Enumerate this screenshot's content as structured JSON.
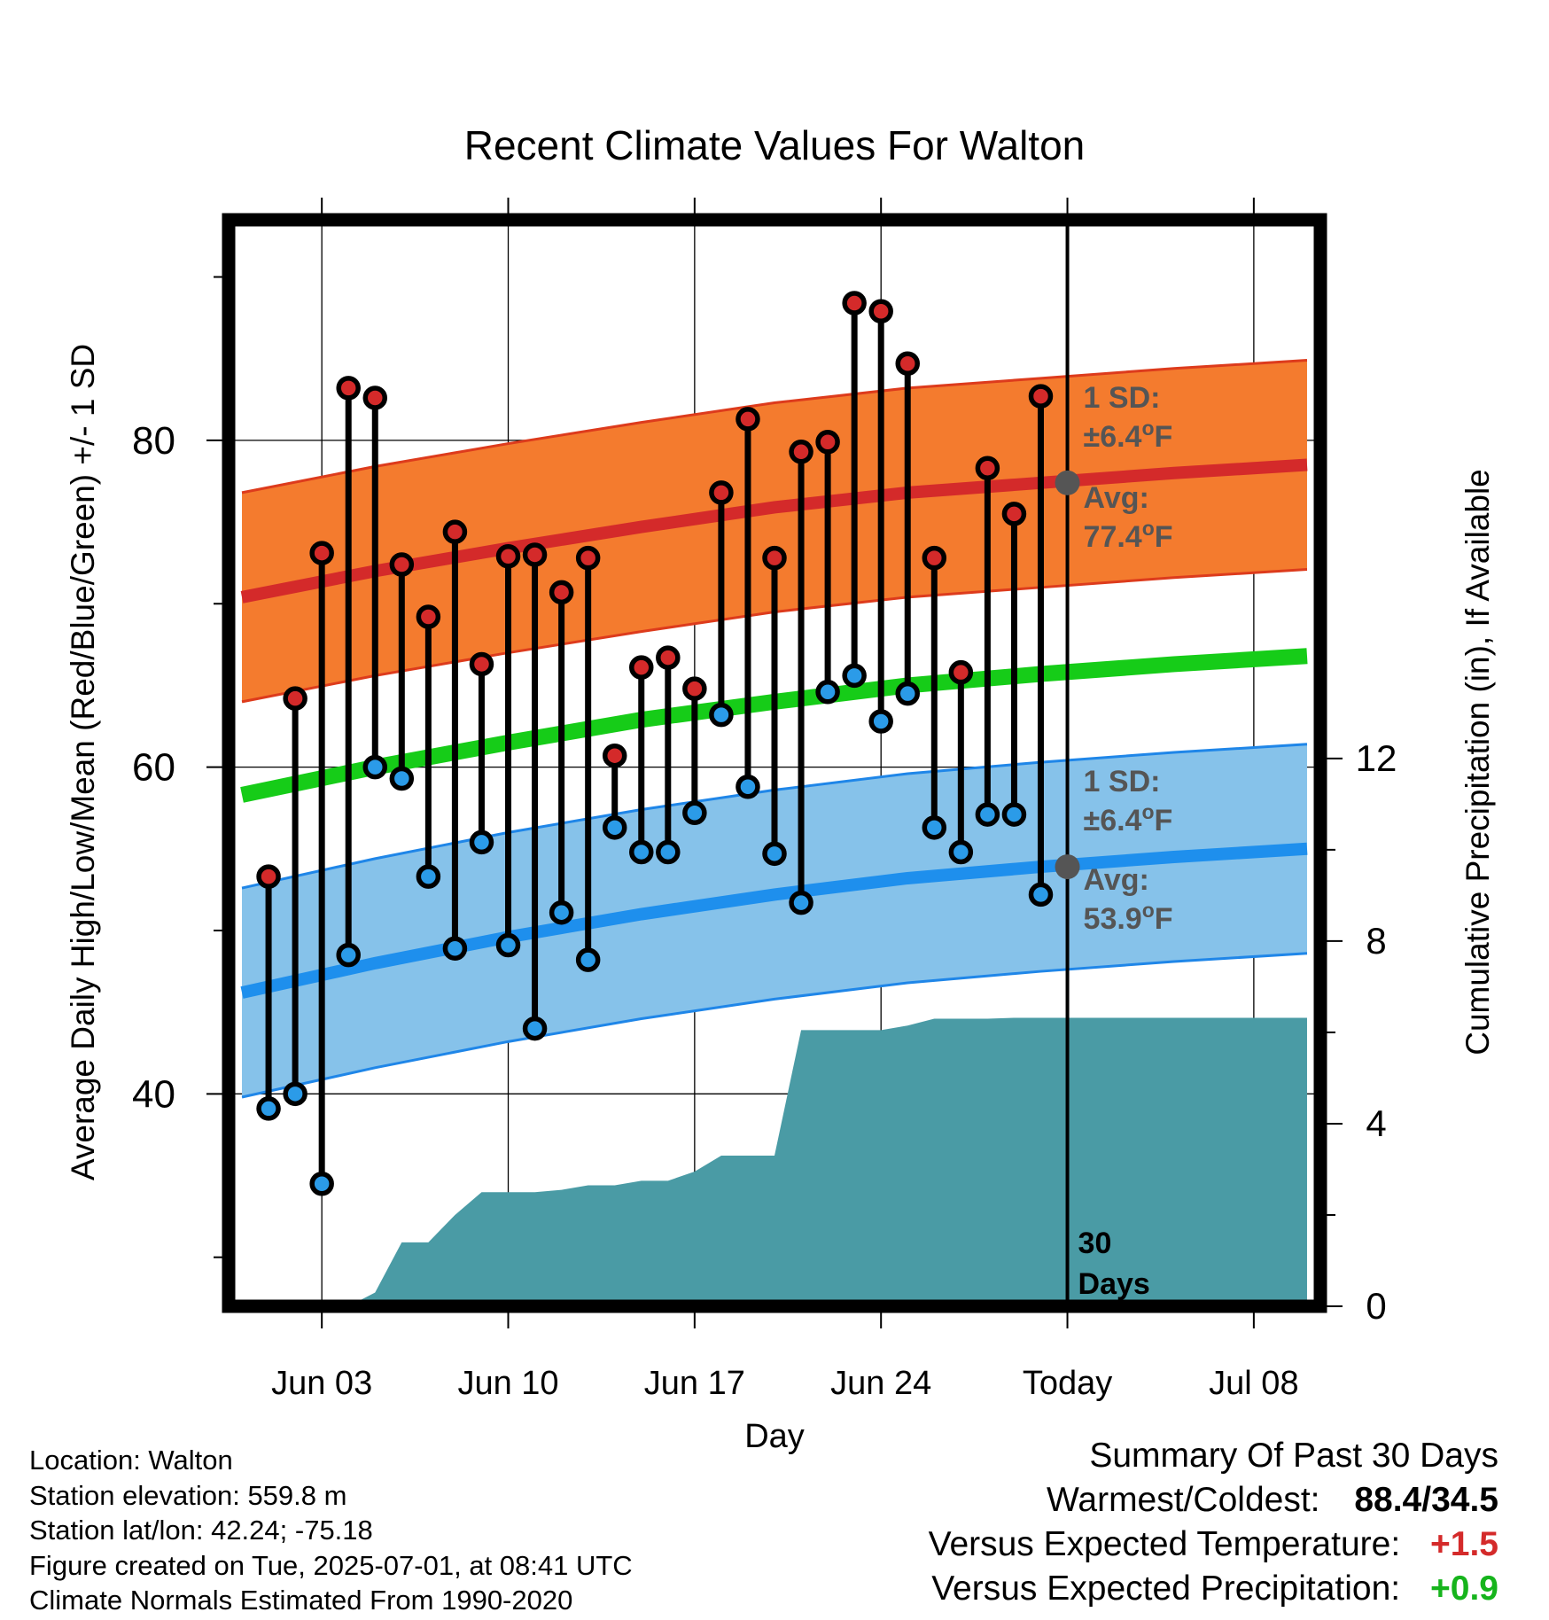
{
  "chart_data": {
    "type": "line",
    "title": "Recent Climate Values For Walton",
    "xlabel": "Day",
    "ylabel_left": "Average Daily High/Low/Mean (Red/Blue/Green) +/- 1 SD",
    "ylabel_right": "Cumulative Precipitation (in), If Available",
    "x_day_range": [
      -0.5,
      40.5
    ],
    "x_tick_labels": [
      {
        "label": "Jun 03",
        "day": 3
      },
      {
        "label": "Jun 10",
        "day": 10
      },
      {
        "label": "Jun 17",
        "day": 17
      },
      {
        "label": "Jun 24",
        "day": 24
      },
      {
        "label": "Today",
        "day": 31
      },
      {
        "label": "Jul 08",
        "day": 38
      }
    ],
    "ylim_left": [
      27,
      93.5
    ],
    "yticks_left": [
      40,
      60,
      80
    ],
    "ylim_right": [
      0,
      23.8
    ],
    "yticks_right": [
      0,
      4,
      8,
      12
    ],
    "days": [
      1,
      2,
      3,
      4,
      5,
      6,
      7,
      8,
      9,
      10,
      11,
      12,
      13,
      14,
      15,
      16,
      17,
      18,
      19,
      20,
      21,
      22,
      23,
      24,
      25,
      26,
      27,
      28,
      29,
      30
    ],
    "daily_high": [
      53.3,
      64.2,
      73.1,
      83.2,
      82.6,
      72.4,
      69.2,
      74.4,
      66.3,
      72.9,
      73.0,
      70.7,
      72.8,
      60.7,
      66.1,
      66.7,
      64.8,
      76.8,
      81.3,
      72.8,
      79.3,
      79.9,
      88.4,
      87.9,
      84.7,
      72.8,
      65.8,
      78.3,
      75.5,
      82.7
    ],
    "daily_low": [
      39.1,
      40.0,
      34.5,
      48.5,
      60.0,
      59.3,
      53.3,
      48.9,
      55.4,
      49.1,
      44.0,
      51.1,
      48.2,
      56.3,
      54.8,
      54.8,
      57.2,
      63.2,
      58.8,
      54.7,
      51.7,
      64.6,
      65.6,
      62.8,
      64.5,
      56.3,
      54.8,
      57.1,
      57.1,
      52.2
    ],
    "normal_high": {
      "days": [
        0,
        5,
        10,
        15,
        20,
        25,
        30,
        35,
        40
      ],
      "avg": [
        70.4,
        72.0,
        73.4,
        74.7,
        75.9,
        76.8,
        77.4,
        78.0,
        78.5
      ],
      "sd": 6.4
    },
    "normal_low": {
      "days": [
        0,
        5,
        10,
        15,
        20,
        25,
        30,
        35,
        40
      ],
      "avg": [
        46.2,
        48.0,
        49.6,
        51.0,
        52.2,
        53.2,
        53.9,
        54.5,
        55.0
      ],
      "sd": 6.4
    },
    "normal_mean": {
      "days": [
        0,
        5,
        10,
        15,
        20,
        25,
        30,
        35,
        40
      ],
      "values": [
        58.3,
        60.0,
        61.5,
        62.9,
        64.0,
        65.0,
        65.7,
        66.3,
        66.8
      ]
    },
    "precip_cumulative": {
      "days": [
        0,
        4,
        5,
        6,
        7,
        8,
        9,
        10,
        11,
        12,
        13,
        14,
        15,
        16,
        17,
        18,
        19,
        20,
        21,
        22,
        23,
        24,
        25,
        26,
        27,
        28,
        29,
        30,
        40
      ],
      "values": [
        0,
        0,
        0.3,
        1.4,
        1.4,
        2.0,
        2.5,
        2.5,
        2.5,
        2.55,
        2.65,
        2.65,
        2.75,
        2.75,
        2.95,
        3.3,
        3.3,
        3.3,
        6.05,
        6.05,
        6.05,
        6.05,
        6.15,
        6.3,
        6.3,
        6.3,
        6.32,
        6.32,
        6.32
      ]
    },
    "annotations": {
      "high_sd_title": "1 SD:",
      "high_sd_value": "±6.4",
      "high_avg_title": "Avg:",
      "high_avg_value": "77.4",
      "low_sd_title": "1 SD:",
      "low_sd_value": "±6.4",
      "low_avg_title": "Avg:",
      "low_avg_value": "53.9",
      "degree_unit": "o",
      "temp_unit": "F",
      "today_day": 31,
      "today_label_line1": "30",
      "today_label_line2": "Days"
    },
    "colors": {
      "high_band": "#f47b2e",
      "high_avg_line": "#d42a2a",
      "high_band_edge": "#dd3b1c",
      "low_band": "#86c2ea",
      "low_avg_line": "#1e8fed",
      "low_band_edge": "#1f86e8",
      "mean_line": "#16cc18",
      "precip_fill": "#4a9ba5",
      "high_marker": "#d42a2a",
      "low_marker": "#2b9be8",
      "annotation_text": "#555555",
      "today_marker": "#555555"
    }
  },
  "footer_info": {
    "location": "Location: Walton",
    "elevation": "Station elevation: 559.8 m",
    "latlon": "Station lat/lon: 42.24; -75.18",
    "created": "Figure created on Tue, 2025-07-01, at 08:41 UTC",
    "normals": "Climate Normals Estimated From 1990-2020"
  },
  "summary": {
    "title": "Summary Of Past 30 Days",
    "warmest_coldest_label": "Warmest/Coldest:",
    "warmest_coldest_value": "88.4/34.5",
    "temp_label": "Versus Expected Temperature:",
    "temp_value": "+1.5",
    "temp_color": "#d42a2a",
    "precip_label": "Versus Expected Precipitation:",
    "precip_value": "+0.9",
    "precip_color": "#16b41c"
  }
}
